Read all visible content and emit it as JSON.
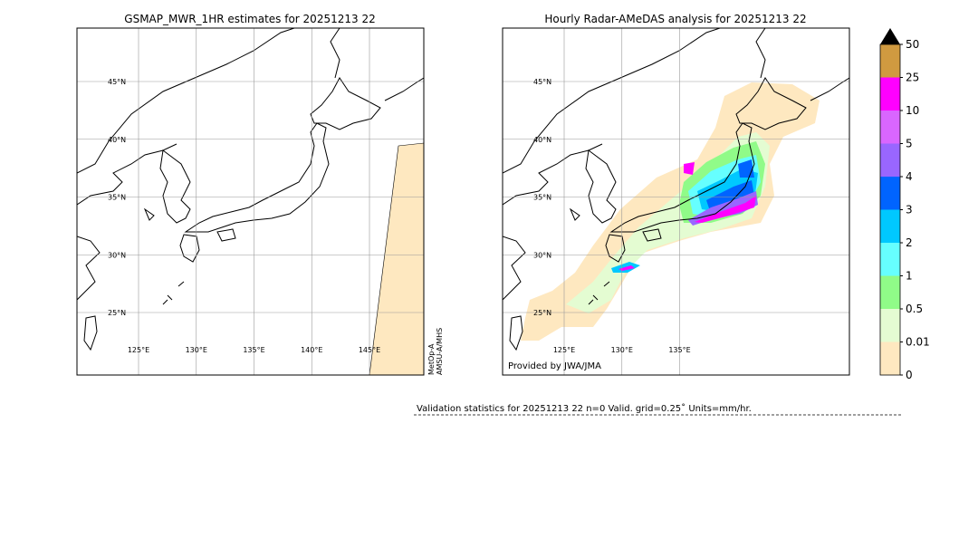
{
  "left_panel": {
    "title": "GSMAP_MWR_1HR estimates for 20251213 22",
    "lat_labels": [
      "45°N",
      "40°N",
      "35°N",
      "30°N",
      "25°N"
    ],
    "lon_labels": [
      "125°E",
      "130°E",
      "135°E",
      "140°E",
      "145°E"
    ],
    "satellite": [
      "MetOp-A",
      "AMSU-A/MHS"
    ]
  },
  "right_panel": {
    "title": "Hourly Radar-AMeDAS analysis for 20251213 22",
    "lat_labels": [
      "45°N",
      "40°N",
      "35°N",
      "30°N",
      "25°N"
    ],
    "lon_labels": [
      "125°E",
      "130°E",
      "135°E"
    ],
    "credit": "Provided by JWA/JMA"
  },
  "colorbar": {
    "levels": [
      0,
      0.01,
      0.5,
      1,
      2,
      3,
      4,
      5,
      10,
      25,
      50
    ],
    "colors": [
      "#fee8c0",
      "#e4fcd2",
      "#90fb88",
      "#66ffff",
      "#00c8ff",
      "#0064ff",
      "#9966ff",
      "#d966ff",
      "#ff00ff",
      "#d09a40"
    ],
    "extend_color": "#000000"
  },
  "validation": "Validation statistics for 20251213 22  n=0 Valid. grid=0.25˚ Units=mm/hr."
}
